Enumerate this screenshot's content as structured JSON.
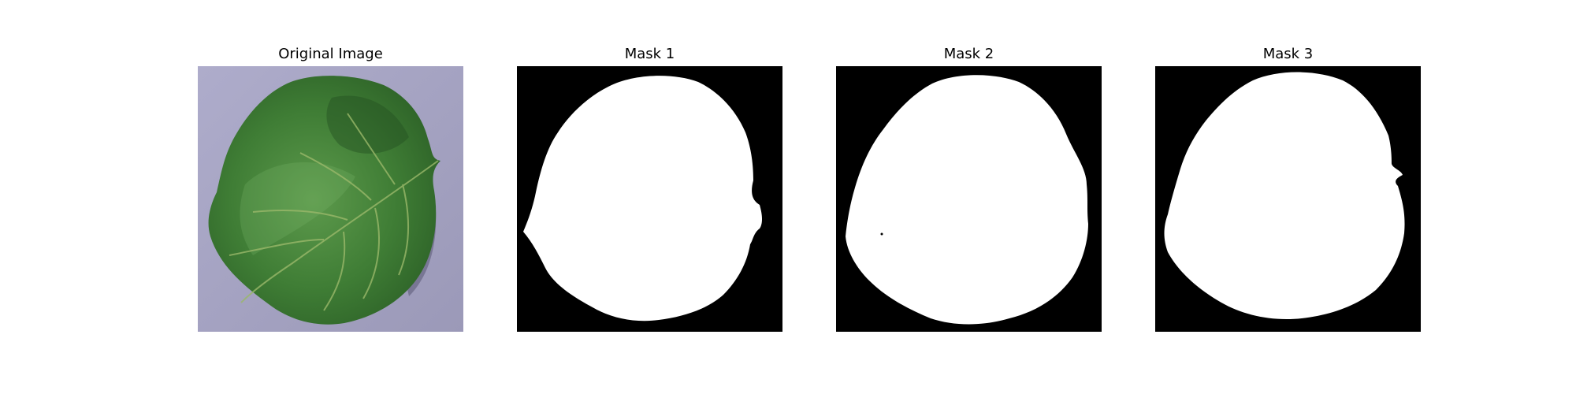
{
  "figure": {
    "panels": [
      {
        "title": "Original Image",
        "kind": "photo",
        "subject": "leaf-photo"
      },
      {
        "title": "Mask 1",
        "kind": "mask",
        "subject": "leaf-mask"
      },
      {
        "title": "Mask 2",
        "kind": "mask",
        "subject": "leaf-mask"
      },
      {
        "title": "Mask 3",
        "kind": "mask",
        "subject": "leaf-mask"
      }
    ]
  },
  "colors": {
    "background": "#ffffff",
    "mask_background": "#000000",
    "mask_foreground": "#ffffff",
    "photo_background": "#a8a6c4",
    "leaf_base": "#3f7d35",
    "leaf_dark": "#245520",
    "leaf_light": "#6ea45c",
    "leaf_shadow": "#5a5874"
  }
}
